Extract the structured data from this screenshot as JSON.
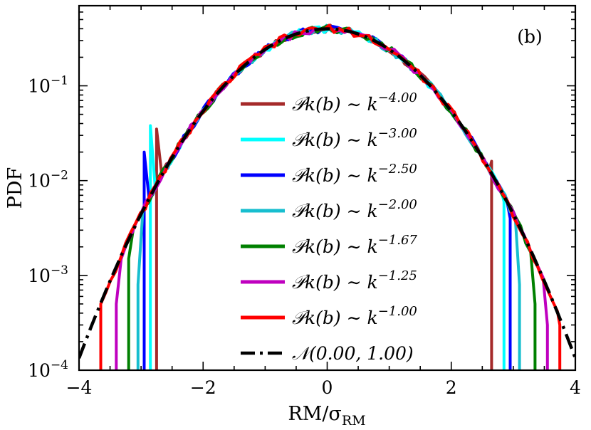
{
  "chart_data": {
    "type": "line",
    "panel_label": "(b)",
    "xlabel": "RM/σ",
    "xlabel_sub": "RM",
    "ylabel": "PDF",
    "xlim": [
      -4,
      4
    ],
    "ylim": [
      0.0001,
      0.7
    ],
    "yscale": "log",
    "x_ticks": [
      -4,
      -2,
      0,
      2,
      4
    ],
    "x_tick_labels": [
      "−4",
      "−2",
      "0",
      "2",
      "4"
    ],
    "y_ticks": [
      0.0001,
      0.001,
      0.01,
      0.1
    ],
    "y_tick_labels": [
      {
        "base": "10",
        "exp": "−4"
      },
      {
        "base": "10",
        "exp": "−3"
      },
      {
        "base": "10",
        "exp": "−2"
      },
      {
        "base": "10",
        "exp": "−1"
      }
    ],
    "legend_position": "center",
    "series": [
      {
        "name": "𝒫k(b) ∼ k",
        "exponent": "−4.00",
        "color": "#a52a2a",
        "xmin": -2.75,
        "xmax": 2.65,
        "edge_left": 0.035,
        "edge_right": 0.016
      },
      {
        "name": "𝒫k(b) ∼ k",
        "exponent": "−3.00",
        "color": "#00ffff",
        "xmin": -2.85,
        "xmax": 2.85,
        "edge_left": 0.038,
        "edge_right": 0.006
      },
      {
        "name": "𝒫k(b) ∼ k",
        "exponent": "−2.50",
        "color": "#0000ff",
        "xmin": -2.95,
        "xmax": 2.95,
        "edge_left": 0.02,
        "edge_right": 0.004
      },
      {
        "name": "𝒫k(b) ∼ k",
        "exponent": "−2.00",
        "color": "#17becf",
        "xmin": -3.05,
        "xmax": 3.1,
        "edge_left": 0.0008,
        "edge_right": 0.0008
      },
      {
        "name": "𝒫k(b) ∼ k",
        "exponent": "−1.67",
        "color": "#008000",
        "xmin": -3.2,
        "xmax": 3.35,
        "edge_left": 0.0015,
        "edge_right": 0.0005
      },
      {
        "name": "𝒫k(b) ∼ k",
        "exponent": "−1.25",
        "color": "#bf00bf",
        "xmin": -3.4,
        "xmax": 3.55,
        "edge_left": 0.0005,
        "edge_right": 0.0003
      },
      {
        "name": "𝒫k(b) ∼ k",
        "exponent": "−1.00",
        "color": "#ff0000",
        "xmin": -3.65,
        "xmax": 3.75,
        "edge_left": 0.0005,
        "edge_right": 0.0003
      }
    ],
    "reference": {
      "name": "𝒩(0.00, 1.00)",
      "mean": 0.0,
      "std": 1.0,
      "color": "#000000",
      "style": "dash-dot"
    }
  }
}
